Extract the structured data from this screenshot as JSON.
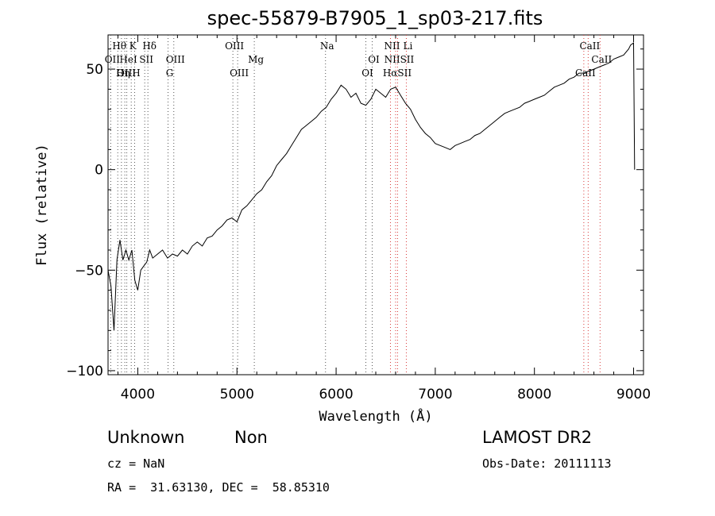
{
  "chart_data": {
    "type": "line",
    "title": "spec-55879-B7905_1_sp03-217.fits",
    "xlabel": "Wavelength (Å)",
    "ylabel": "Flux (relative)",
    "xlim": [
      3700,
      9100
    ],
    "ylim": [
      -102,
      67
    ],
    "xticks": [
      4000,
      5000,
      6000,
      7000,
      8000,
      9000
    ],
    "yticks": [
      -100,
      -50,
      0,
      50
    ],
    "grid": false,
    "legend": "none",
    "series": [
      {
        "x": [
          3700,
          3730,
          3760,
          3790,
          3820,
          3850,
          3880,
          3910,
          3940,
          3970,
          4000,
          4030,
          4060,
          4090,
          4120,
          4150,
          4200,
          4250,
          4300,
          4350,
          4400,
          4450,
          4500,
          4550,
          4600,
          4650,
          4700,
          4750,
          4800,
          4850,
          4900,
          4950,
          5000,
          5050,
          5100,
          5150,
          5200,
          5250,
          5300,
          5350,
          5400,
          5450,
          5500,
          5550,
          5600,
          5650,
          5700,
          5750,
          5800,
          5850,
          5900,
          5950,
          6000,
          6050,
          6100,
          6150,
          6200,
          6250,
          6300,
          6350,
          6400,
          6450,
          6500,
          6550,
          6600,
          6650,
          6700,
          6750,
          6800,
          6850,
          6900,
          6950,
          7000,
          7050,
          7100,
          7150,
          7200,
          7250,
          7300,
          7350,
          7400,
          7450,
          7500,
          7550,
          7600,
          7650,
          7700,
          7750,
          7800,
          7850,
          7900,
          7950,
          8000,
          8050,
          8100,
          8150,
          8200,
          8250,
          8300,
          8350,
          8400,
          8450,
          8500,
          8550,
          8600,
          8650,
          8700,
          8750,
          8800,
          8850,
          8900,
          8950,
          8970,
          9000,
          9010
        ],
        "y": [
          -50,
          -58,
          -80,
          -45,
          -35,
          -45,
          -40,
          -45,
          -40,
          -55,
          -60,
          -50,
          -48,
          -46,
          -40,
          -44,
          -42,
          -40,
          -44,
          -42,
          -43,
          -40,
          -42,
          -38,
          -36,
          -38,
          -34,
          -33,
          -30,
          -28,
          -25,
          -24,
          -26,
          -20,
          -18,
          -15,
          -12,
          -10,
          -6,
          -3,
          2,
          5,
          8,
          12,
          16,
          20,
          22,
          24,
          26,
          29,
          31,
          35,
          38,
          42,
          40,
          36,
          38,
          33,
          32,
          35,
          40,
          38,
          36,
          40,
          41,
          37,
          33,
          30,
          25,
          21,
          18,
          16,
          13,
          12,
          11,
          10,
          12,
          13,
          14,
          15,
          17,
          18,
          20,
          22,
          24,
          26,
          28,
          29,
          30,
          31,
          33,
          34,
          35,
          36,
          37,
          39,
          41,
          42,
          43,
          45,
          46,
          48,
          48,
          49,
          50,
          51,
          52,
          53,
          55,
          56,
          57,
          60,
          62,
          63,
          0
        ]
      }
    ],
    "line_marks": [
      {
        "label": "Hθ",
        "x": 3798,
        "row": 0
      },
      {
        "label": "K",
        "x": 3934,
        "row": 0
      },
      {
        "label": "Hδ",
        "x": 4102,
        "row": 0
      },
      {
        "label": "OII",
        "x": 3727,
        "row": 1
      },
      {
        "label": "HeI",
        "x": 3889,
        "row": 1
      },
      {
        "label": "SII",
        "x": 4070,
        "row": 1
      },
      {
        "label": "OIII",
        "x": 4363,
        "row": 1
      },
      {
        "label": "OIII",
        "x": 3869,
        "row": 2
      },
      {
        "label": "Hη",
        "x": 3835,
        "row": 2
      },
      {
        "label": "H",
        "x": 3968,
        "row": 2
      },
      {
        "label": "G",
        "x": 4305,
        "row": 2
      },
      {
        "label": "OIII",
        "x": 4959,
        "row": 0
      },
      {
        "label": "Mg",
        "x": 5175,
        "row": 1
      },
      {
        "label": "OIII",
        "x": 5007,
        "row": 2
      },
      {
        "label": "Na",
        "x": 5893,
        "row": 0
      },
      {
        "label": "OI",
        "x": 6364,
        "row": 1
      },
      {
        "label": "OI",
        "x": 6300,
        "row": 2
      },
      {
        "label": "NII",
        "x": 6548,
        "row": 0
      },
      {
        "label": "Li",
        "x": 6708,
        "row": 0
      },
      {
        "label": "NIISII",
        "x": 6620,
        "row": 1
      },
      {
        "label": "HαSII",
        "x": 6600,
        "row": 2
      },
      {
        "label": "CaII",
        "x": 8542,
        "row": 0
      },
      {
        "label": "CaII",
        "x": 8662,
        "row": 1
      },
      {
        "label": "CaII",
        "x": 8498,
        "row": 2
      }
    ],
    "line_colors": {
      "emission": "#d83a3a",
      "absorption": "#555555"
    }
  },
  "footer": {
    "object_class": "Unknown",
    "subclass": "Non",
    "survey": "LAMOST DR2",
    "redshift": "cz = NaN",
    "obs_date": "Obs-Date: 20111113",
    "coords": "RA =  31.63130, DEC =  58.85310"
  }
}
